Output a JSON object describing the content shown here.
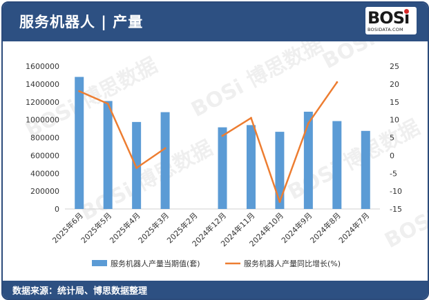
{
  "header": {
    "title": "服务机器人 | 产量"
  },
  "logo": {
    "main": "BOSi",
    "sub": "BOSIDATA.COM"
  },
  "footer": {
    "source": "数据来源：统计局、博思数据整理"
  },
  "colors": {
    "header_bg": "#2d5082",
    "bar": "#5b9bd5",
    "line": "#ed7d31"
  },
  "watermark": {
    "text": "BOSi 博思数据"
  },
  "chart_data": {
    "type": "bar+line",
    "categories": [
      "2025年6月",
      "2025年5月",
      "2025年4月",
      "2025年3月",
      "2025年2月",
      "2024年12月",
      "2024年11月",
      "2024年10月",
      "2024年9月",
      "2024年8月",
      "2024年7月"
    ],
    "series": [
      {
        "name": "服务机器人产量当期值(套)",
        "type": "bar",
        "axis": "left",
        "values": [
          1480000,
          1210000,
          975000,
          1085000,
          null,
          915000,
          940000,
          865000,
          1090000,
          985000,
          875000
        ]
      },
      {
        "name": "服务机器人产量同比增长(%)",
        "type": "line",
        "axis": "right",
        "values": [
          18,
          14.5,
          -3.5,
          2,
          null,
          5.5,
          10.5,
          -13,
          9,
          20.5,
          null
        ]
      }
    ],
    "y_left": {
      "min": 0,
      "max": 1600000,
      "ticks": [
        "0",
        "200000",
        "400000",
        "600000",
        "800000",
        "1000000",
        "1200000",
        "1400000",
        "1600000"
      ]
    },
    "y_right": {
      "min": -15,
      "max": 25,
      "ticks": [
        "-15",
        "-10",
        "-5",
        "0",
        "5",
        "10",
        "15",
        "20",
        "25"
      ]
    },
    "legend_position": "bottom"
  }
}
